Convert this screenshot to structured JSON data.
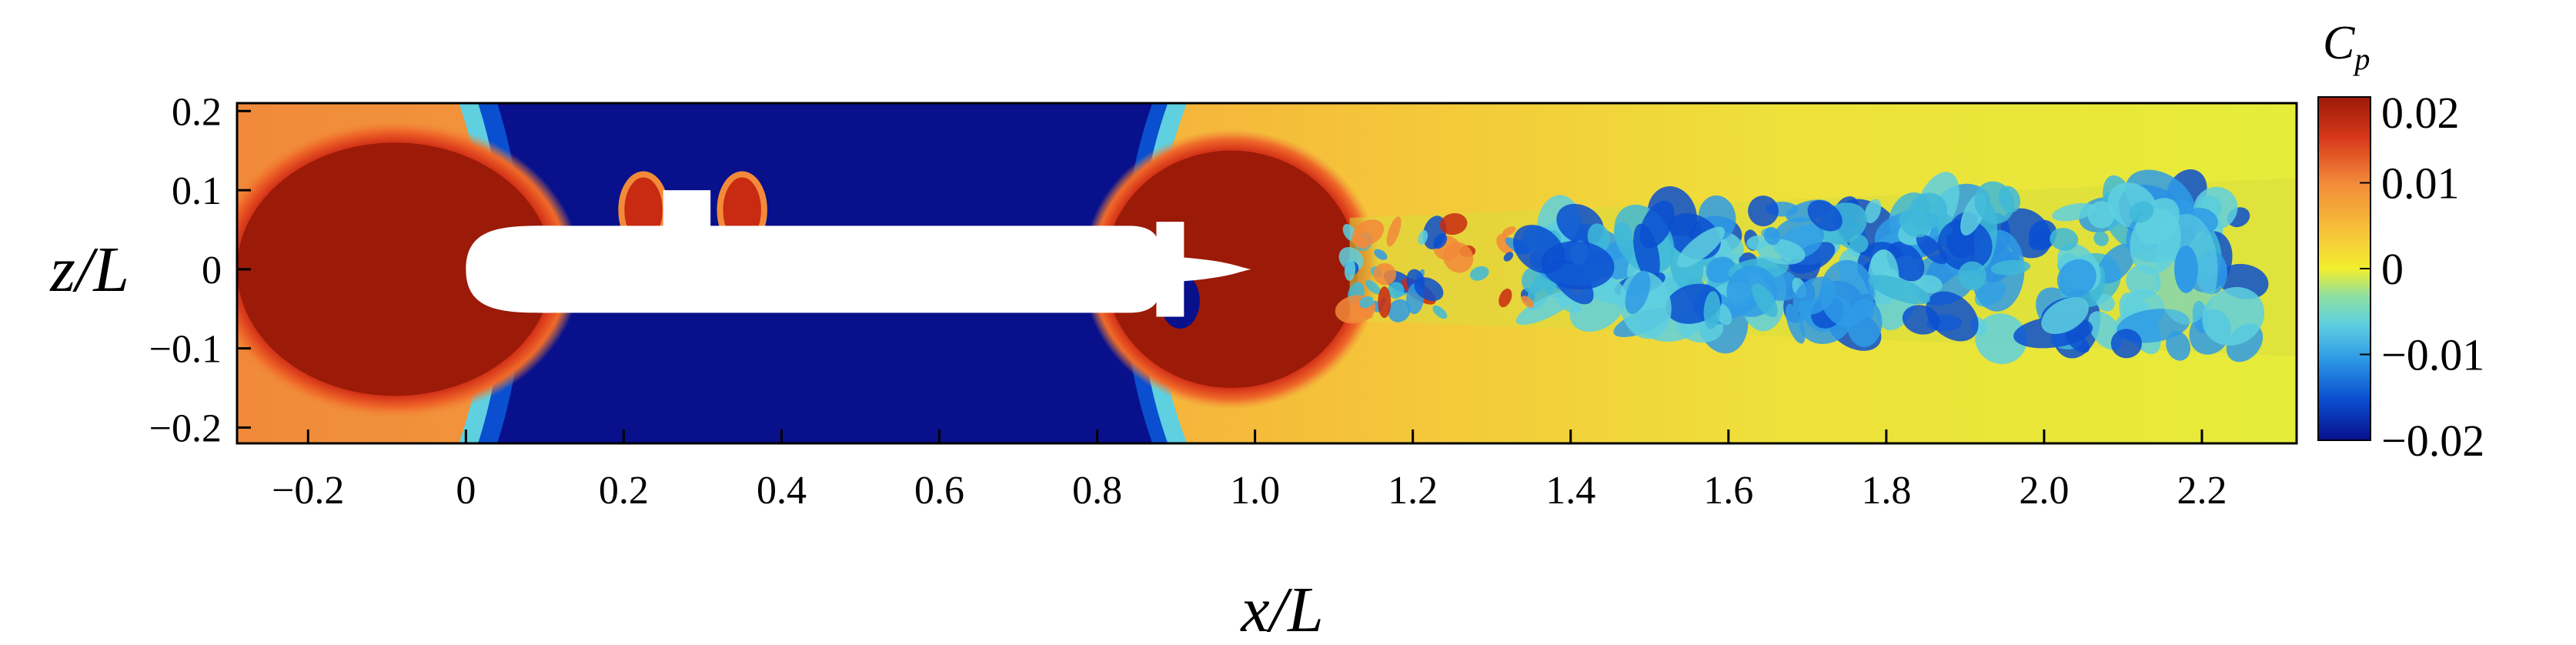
{
  "chart_data": {
    "type": "heatmap",
    "title": "",
    "xlabel": "x/L",
    "ylabel": "z/L",
    "xlim": [
      -0.29,
      2.32
    ],
    "ylim": [
      -0.22,
      0.21
    ],
    "x_ticks": [
      -0.2,
      0,
      0.2,
      0.4,
      0.6,
      0.8,
      1.0,
      1.2,
      1.4,
      1.6,
      1.8,
      2.0,
      2.2
    ],
    "x_tick_labels": [
      "−0.2",
      "0",
      "0.2",
      "0.4",
      "0.6",
      "0.8",
      "1.0",
      "1.2",
      "1.4",
      "1.6",
      "1.8",
      "2.0",
      "2.2"
    ],
    "y_ticks": [
      0.2,
      0.1,
      0,
      -0.1,
      -0.2
    ],
    "y_tick_labels": [
      "0.2",
      "0.1",
      "0",
      "−0.1",
      "−0.2"
    ],
    "colorbar": {
      "title_main": "C",
      "title_sub": "p",
      "min": -0.02,
      "max": 0.02,
      "ticks": [
        0.02,
        0.01,
        0,
        -0.01,
        -0.02
      ],
      "tick_labels": [
        "0.02",
        "0.01",
        "0",
        "−0.01",
        "−0.02"
      ],
      "colormap": [
        "#08108c",
        "#0a4fd0",
        "#2f9be6",
        "#5fd0df",
        "#f2ee2e",
        "#f7c63a",
        "#f6a13c",
        "#ec5c2a",
        "#c82a12",
        "#9c1a08"
      ]
    },
    "background_value": 0.003,
    "regions": [
      {
        "name": "bow-high-pressure",
        "cx": -0.09,
        "cz": 0.0,
        "rx": 0.2,
        "rz": 0.16,
        "value": 0.02
      },
      {
        "name": "midbody-low-pressure",
        "x0": 0.03,
        "x1": 0.87,
        "value": -0.02
      },
      {
        "name": "stern-high-pressure",
        "cx": 0.97,
        "cz": 0.0,
        "rx": 0.16,
        "rz": 0.15,
        "value": 0.02
      },
      {
        "name": "turbulent-wake",
        "x0": 1.12,
        "x1": 2.32,
        "z_range": [
          -0.1,
          0.1
        ],
        "value": -0.01
      }
    ],
    "body": {
      "hull_x": [
        0.0,
        0.88
      ],
      "hull_half_thickness": 0.055,
      "sail_x": [
        0.24,
        0.33
      ],
      "sail_top": 0.1
    }
  }
}
